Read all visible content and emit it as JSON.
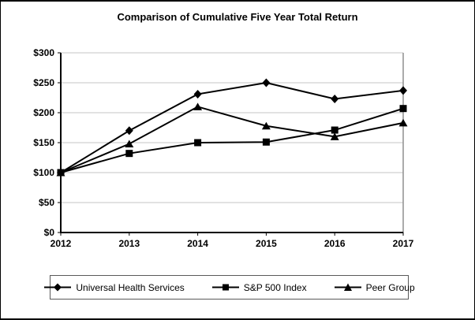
{
  "title": "Comparison of Cumulative Five Year Total Return",
  "colors": {
    "line": "#000000",
    "grid": "#c4c4c4",
    "plot_border": "#8f8f8f",
    "axis": "#000000",
    "background": "#ffffff",
    "text": "#000000"
  },
  "chart_data": {
    "type": "line",
    "title": "Comparison of Cumulative Five Year Total Return",
    "x_labels": [
      "2012",
      "2013",
      "2014",
      "2015",
      "2016",
      "2017"
    ],
    "series": [
      {
        "name": "Universal Health Services",
        "marker": "diamond",
        "values": [
          100,
          170,
          231,
          250,
          223,
          237
        ]
      },
      {
        "name": "S&P 500 Index",
        "marker": "square",
        "values": [
          100,
          132,
          150,
          151,
          171,
          207
        ]
      },
      {
        "name": "Peer Group",
        "marker": "triangle",
        "values": [
          100,
          148,
          210,
          178,
          160,
          183
        ]
      }
    ],
    "ylim": [
      0,
      300
    ],
    "ytick_step": 50,
    "ytick_labels": [
      "$0",
      "$50",
      "$100",
      "$150",
      "$200",
      "$250",
      "$300"
    ],
    "xlabel": "",
    "ylabel": "",
    "grid": "horizontal",
    "legend_position": "bottom"
  }
}
